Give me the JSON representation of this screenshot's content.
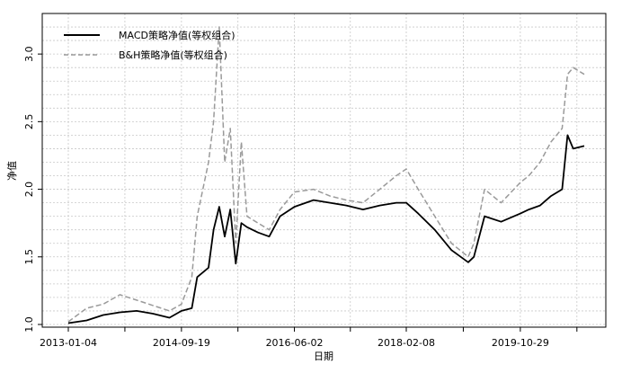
{
  "chart_data": {
    "type": "line",
    "title": "",
    "xlabel": "日期",
    "ylabel": "净值",
    "ylim": [
      0.98,
      3.3
    ],
    "yticks": [
      1.0,
      1.5,
      2.0,
      2.5,
      3.0
    ],
    "ytick_labels": [
      "1.0",
      "1.5",
      "2.0",
      "2.5",
      "3.0"
    ],
    "xtick_labels": [
      "2013-01-04",
      "2014-09-19",
      "2016-06-02",
      "2018-02-08",
      "2019-10-29"
    ],
    "grid": true,
    "legend": "top-left",
    "x": [
      "2013-01-04",
      "2013-04",
      "2013-07",
      "2013-10",
      "2014-01",
      "2014-04",
      "2014-07",
      "2014-09-19",
      "2014-11",
      "2014-12",
      "2015-02",
      "2015-03",
      "2015-04",
      "2015-05",
      "2015-06",
      "2015-07",
      "2015-08",
      "2015-09",
      "2015-11",
      "2016-01",
      "2016-03",
      "2016-06-02",
      "2016-09",
      "2016-12",
      "2017-03",
      "2017-06",
      "2017-09",
      "2017-12",
      "2018-02-08",
      "2018-04",
      "2018-07",
      "2018-10",
      "2019-01",
      "2019-02",
      "2019-04",
      "2019-07",
      "2019-10-29",
      "2019-12",
      "2020-02",
      "2020-04",
      "2020-06",
      "2020-07",
      "2020-08",
      "2020-10"
    ],
    "series": [
      {
        "name": "MACD策略净值(等权组合)",
        "color": "#000000",
        "style": "solid",
        "values": [
          1.01,
          1.03,
          1.07,
          1.09,
          1.1,
          1.08,
          1.05,
          1.1,
          1.12,
          1.35,
          1.42,
          1.7,
          1.87,
          1.65,
          1.85,
          1.45,
          1.75,
          1.72,
          1.68,
          1.65,
          1.8,
          1.87,
          1.92,
          1.9,
          1.88,
          1.85,
          1.88,
          1.9,
          1.9,
          1.82,
          1.7,
          1.55,
          1.46,
          1.5,
          1.8,
          1.76,
          1.82,
          1.85,
          1.88,
          1.95,
          2.0,
          2.4,
          2.3,
          2.32
        ]
      },
      {
        "name": "B&H策略净值(等权组合)",
        "color": "#9a9a9a",
        "style": "dashed",
        "values": [
          1.02,
          1.12,
          1.15,
          1.22,
          1.18,
          1.14,
          1.1,
          1.15,
          1.35,
          1.8,
          2.2,
          2.5,
          3.2,
          2.2,
          2.45,
          1.6,
          2.35,
          1.8,
          1.75,
          1.7,
          1.85,
          1.98,
          2.0,
          1.95,
          1.92,
          1.9,
          2.0,
          2.1,
          2.15,
          2.0,
          1.8,
          1.6,
          1.5,
          1.6,
          2.0,
          1.9,
          2.05,
          2.1,
          2.2,
          2.35,
          2.45,
          2.85,
          2.9,
          2.85
        ]
      }
    ]
  }
}
